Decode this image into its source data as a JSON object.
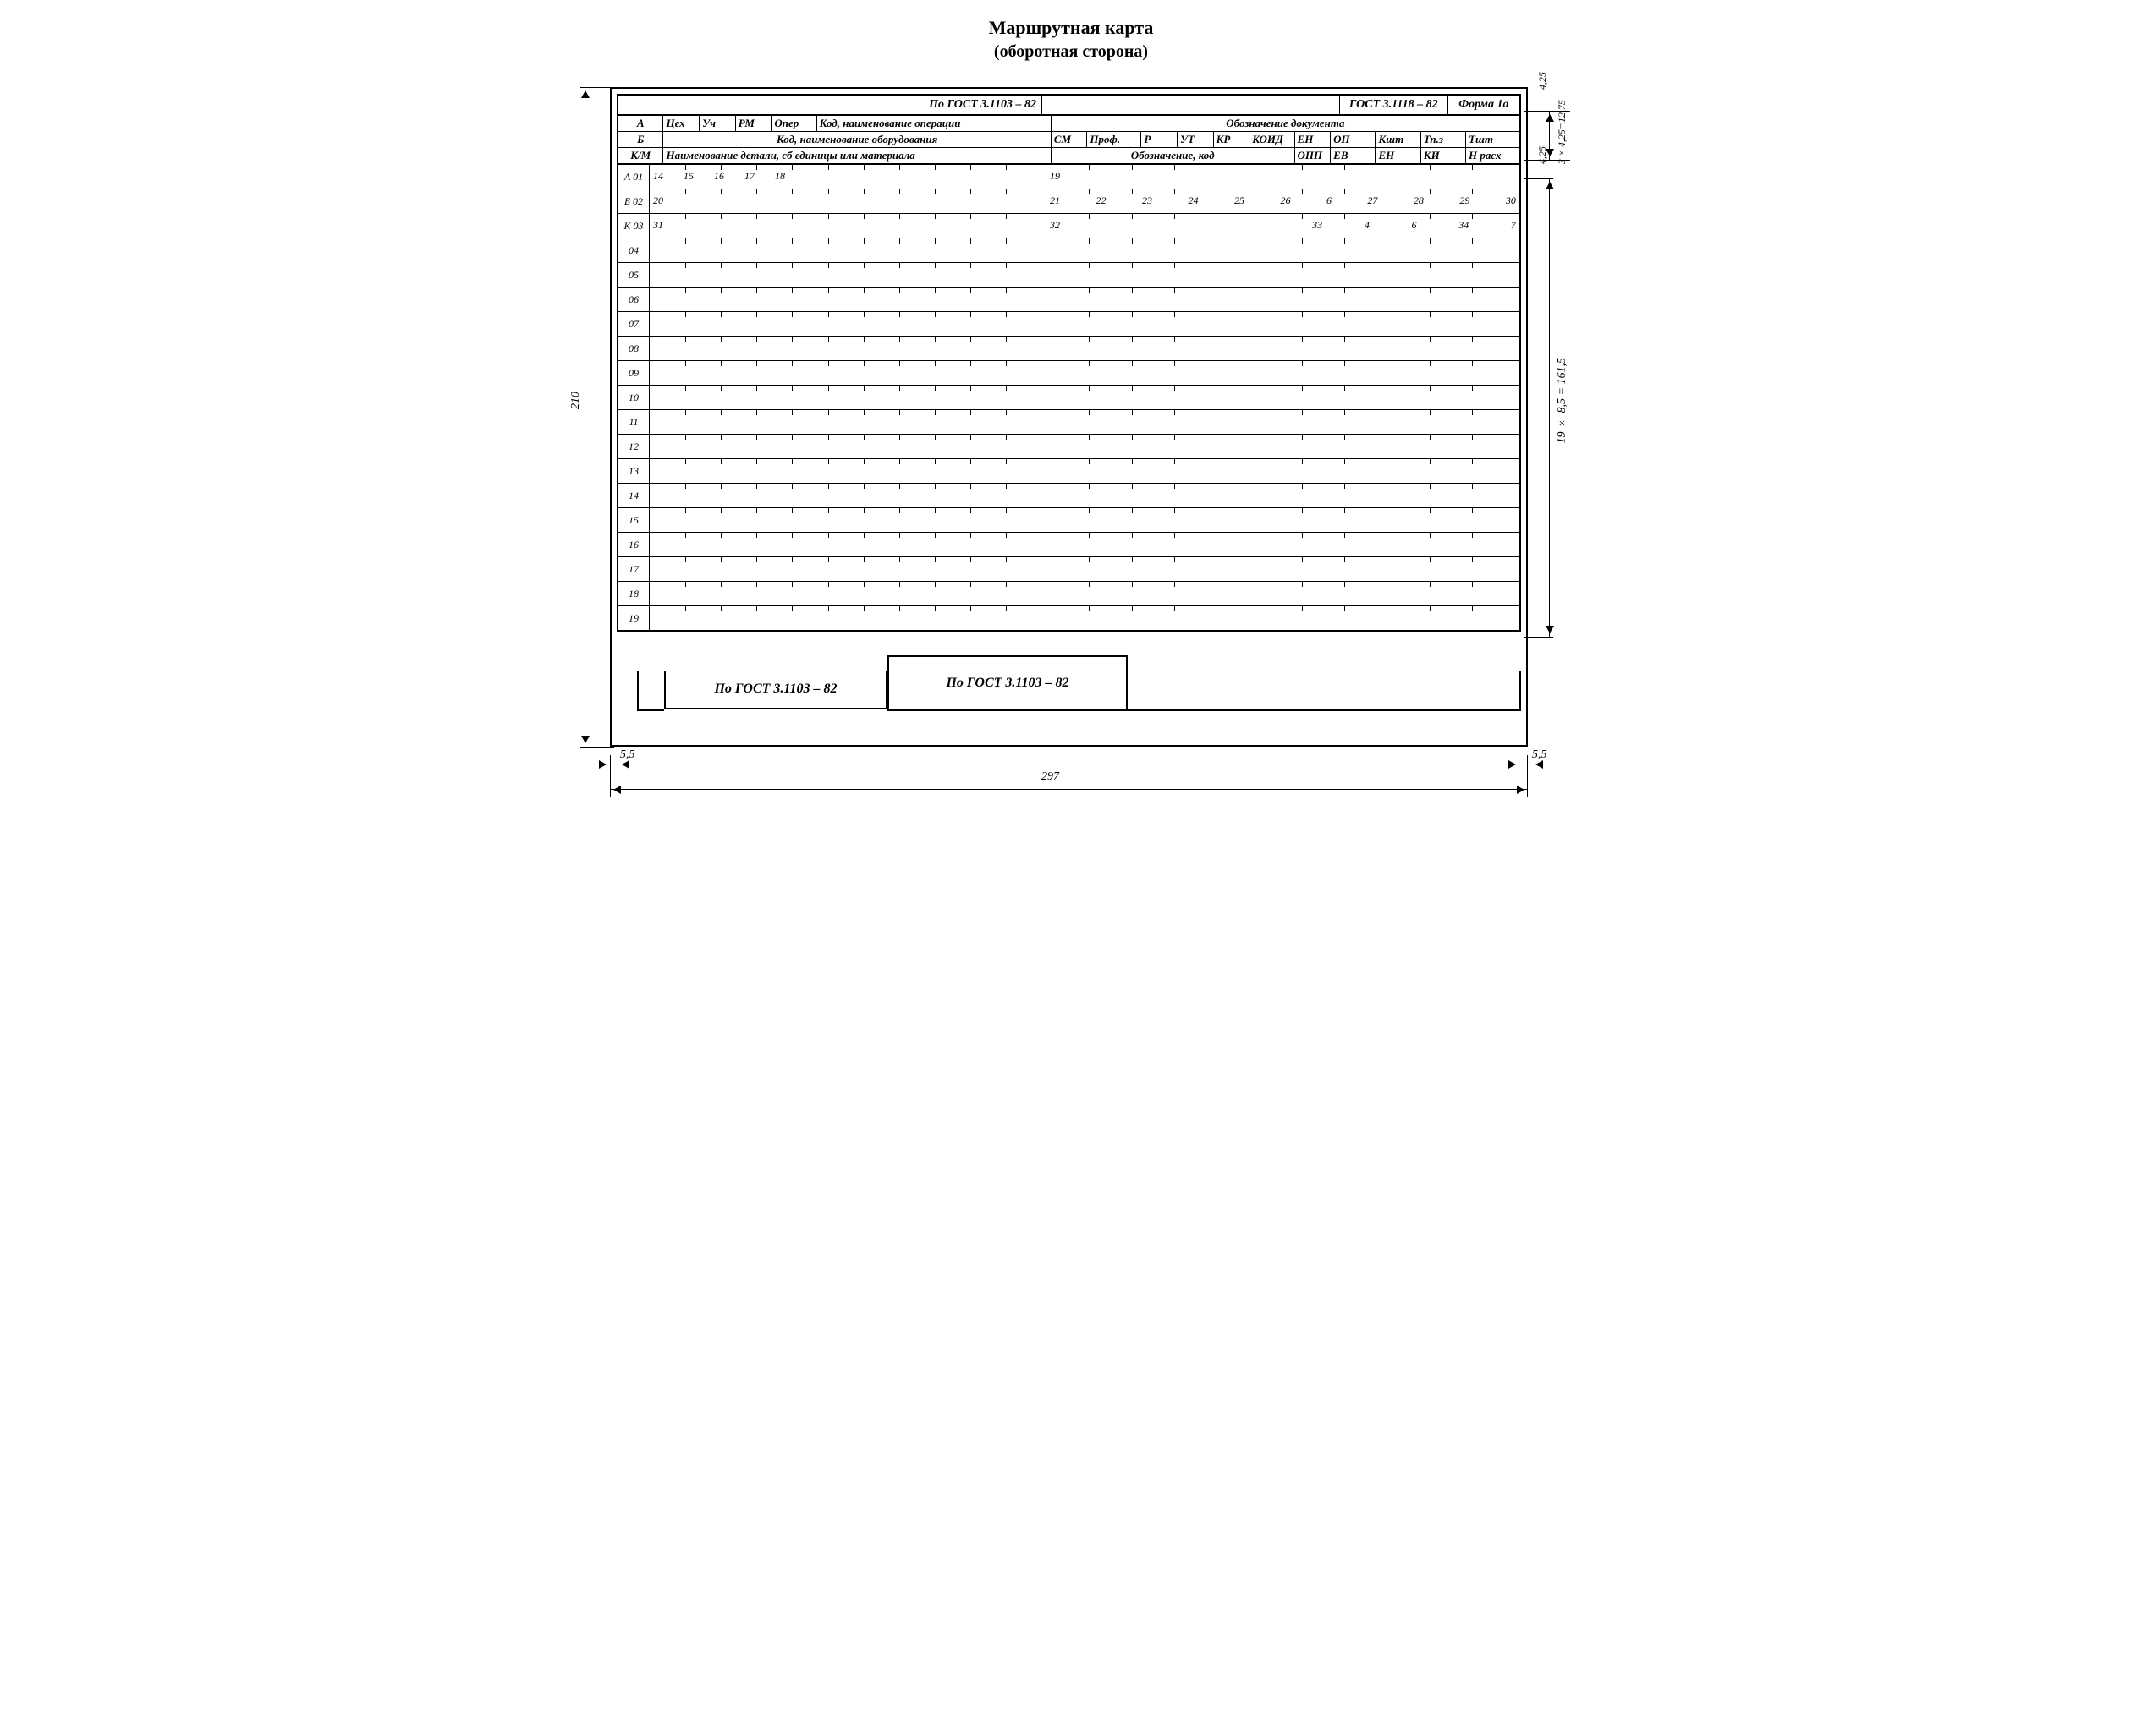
{
  "title_line1": "Маршрутная карта",
  "title_line2": "(оборотная сторона)",
  "top_right_gost": "ГОСТ 3.1118 – 82",
  "top_right_form": "Форма 1а",
  "top_center_gost": "По ГОСТ 3.1103 – 82",
  "hdr_left": {
    "A": "А",
    "A_cells": [
      "Цех",
      "Уч",
      "РМ",
      "Опер",
      "Код, наименование операции"
    ],
    "B": "Б",
    "B_text": "Код, наименование оборудования",
    "K": "К/М",
    "K_text": "Наименование детали, сб единицы или материала"
  },
  "hdr_right": {
    "r1": "Обозначение документа",
    "r2": [
      "СМ",
      "Проф.",
      "Р",
      "УТ",
      "КР",
      "КОИД",
      "ЕН",
      "ОП",
      "Кшт",
      "Тп.з",
      "Тшт"
    ],
    "r3_left": "Обозначение, код",
    "r3": [
      "ОПП",
      "ЕВ",
      "ЕН",
      "КИ",
      "Н расх"
    ]
  },
  "row_prefixes": [
    "А 01",
    "Б 02",
    "К 03",
    "04",
    "05",
    "06",
    "07",
    "08",
    "09",
    "10",
    "11",
    "12",
    "13",
    "14",
    "15",
    "16",
    "17",
    "18",
    "19"
  ],
  "row1_left_nums": [
    "14",
    "15",
    "16",
    "17",
    "18"
  ],
  "row1_right_nums": [
    "19"
  ],
  "row2_left_nums": [
    "20"
  ],
  "row2_right_nums": [
    "21",
    "22",
    "23",
    "24",
    "25",
    "26",
    "6",
    "27",
    "28",
    "29",
    "30"
  ],
  "row3_left_nums": [
    "31"
  ],
  "row3_right_nums": [
    "32",
    "",
    "",
    "",
    "",
    "",
    "33",
    "4",
    "6",
    "34",
    "7"
  ],
  "bottom_gost_left": "По ГОСТ 3.1103 – 82",
  "bottom_gost_mid": "По ГОСТ 3.1103 – 82",
  "dims": {
    "width_297": "297",
    "height_210": "210",
    "left_55": "5,5",
    "right_55": "5,5",
    "top_425_a": "4,25",
    "top_425_b": "4,25",
    "top_sum": "3×4,25=12,75",
    "body_sum": "19 × 8,5 = 161,5"
  },
  "tick_count": 22
}
